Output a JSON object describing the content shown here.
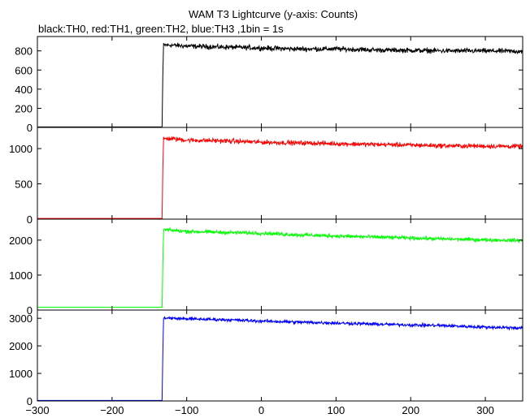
{
  "chart_data": {
    "type": "line",
    "title": "WAM T3 Lightcurve (y-axis: Counts)",
    "subtitle": "black:TH0, red:TH1, green:TH2, blue:TH3 ,1bin = 1s",
    "xlabel": "",
    "ylabel": "",
    "xlim": [
      -300,
      350
    ],
    "x_ticks": [
      -300,
      -200,
      -100,
      0,
      100,
      200,
      300
    ],
    "grid": false,
    "legend": "none",
    "bin_seconds": 1,
    "onset_x": -133,
    "panels": [
      {
        "name": "TH0",
        "color": "#000000",
        "ylim": [
          0,
          950
        ],
        "y_ticks": [
          0,
          200,
          400,
          600,
          800
        ],
        "background": 5,
        "points": [
          [
            -133,
            5
          ],
          [
            -132,
            550
          ],
          [
            -131,
            860
          ],
          [
            -120,
            860
          ],
          [
            -100,
            850
          ],
          [
            -50,
            840
          ],
          [
            0,
            830
          ],
          [
            50,
            820
          ],
          [
            100,
            820
          ],
          [
            150,
            810
          ],
          [
            200,
            805
          ],
          [
            250,
            800
          ],
          [
            300,
            800
          ],
          [
            350,
            795
          ]
        ],
        "noise": 22
      },
      {
        "name": "TH1",
        "color": "#ff0000",
        "ylim": [
          0,
          1300
        ],
        "y_ticks": [
          0,
          500,
          1000
        ],
        "background": 10,
        "points": [
          [
            -133,
            10
          ],
          [
            -132,
            700
          ],
          [
            -131,
            1140
          ],
          [
            -120,
            1140
          ],
          [
            -100,
            1120
          ],
          [
            -50,
            1110
          ],
          [
            0,
            1090
          ],
          [
            50,
            1080
          ],
          [
            100,
            1070
          ],
          [
            150,
            1060
          ],
          [
            200,
            1050
          ],
          [
            250,
            1040
          ],
          [
            300,
            1035
          ],
          [
            350,
            1030
          ]
        ],
        "noise": 28
      },
      {
        "name": "TH2",
        "color": "#00ff00",
        "ylim": [
          0,
          2600
        ],
        "y_ticks": [
          0,
          1000,
          2000
        ],
        "background": 80,
        "points": [
          [
            -133,
            80
          ],
          [
            -132,
            1300
          ],
          [
            -131,
            2300
          ],
          [
            -120,
            2280
          ],
          [
            -100,
            2250
          ],
          [
            -50,
            2220
          ],
          [
            0,
            2200
          ],
          [
            50,
            2150
          ],
          [
            100,
            2120
          ],
          [
            150,
            2090
          ],
          [
            200,
            2060
          ],
          [
            250,
            2030
          ],
          [
            300,
            2010
          ],
          [
            350,
            1990
          ]
        ],
        "noise": 45
      },
      {
        "name": "TH3",
        "color": "#0000ff",
        "ylim": [
          0,
          3300
        ],
        "y_ticks": [
          0,
          1000,
          2000,
          3000
        ],
        "background": 20,
        "points": [
          [
            -133,
            20
          ],
          [
            -132,
            1700
          ],
          [
            -131,
            3020
          ],
          [
            -120,
            3000
          ],
          [
            -100,
            2980
          ],
          [
            -50,
            2950
          ],
          [
            0,
            2900
          ],
          [
            50,
            2860
          ],
          [
            100,
            2830
          ],
          [
            150,
            2790
          ],
          [
            200,
            2760
          ],
          [
            250,
            2730
          ],
          [
            300,
            2680
          ],
          [
            350,
            2650
          ]
        ],
        "noise": 50
      }
    ]
  }
}
